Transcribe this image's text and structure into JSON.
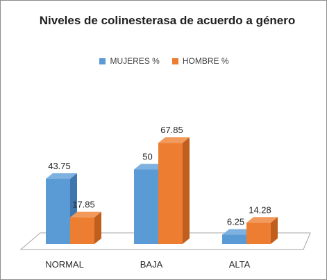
{
  "colors": {
    "mujeres_front": "#5b9bd5",
    "mujeres_side": "#3f76ad",
    "mujeres_top": "#7eb1e0",
    "hombre_front": "#ed7d31",
    "hombre_side": "#c05e1d",
    "hombre_top": "#f29a5c"
  },
  "chart_data": {
    "type": "bar",
    "title": "Niveles de colinesterasa de acuerdo a género",
    "categories": [
      "NORMAL",
      "BAJA",
      "ALTA"
    ],
    "series": [
      {
        "name": "MUJERES %",
        "values": [
          43.75,
          50,
          6.25
        ]
      },
      {
        "name": "HOMBRE %",
        "values": [
          17.85,
          67.85,
          14.28
        ]
      }
    ],
    "value_labels": [
      [
        "43.75",
        "50",
        "6.25"
      ],
      [
        "17.85",
        "67.85",
        "14.28"
      ]
    ],
    "legend_position": "top",
    "grid": false,
    "style": "3d-clustered-column"
  }
}
